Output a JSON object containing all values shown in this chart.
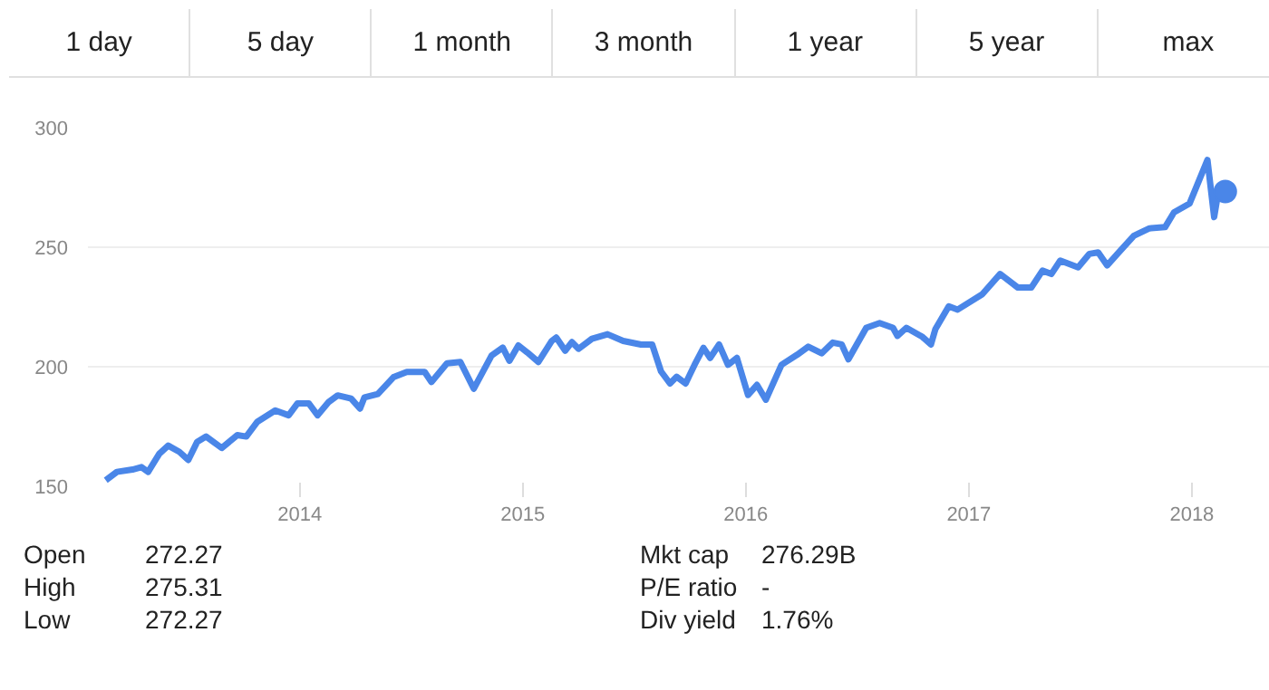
{
  "chart_data": {
    "type": "line",
    "x": [
      2013.13,
      2013.18,
      2013.25,
      2013.29,
      2013.32,
      2013.37,
      2013.41,
      2013.46,
      2013.5,
      2013.54,
      2013.58,
      2013.65,
      2013.72,
      2013.76,
      2013.81,
      2013.89,
      2013.95,
      2013.99,
      2014.04,
      2014.08,
      2014.13,
      2014.17,
      2014.23,
      2014.27,
      2014.29,
      2014.35,
      2014.42,
      2014.48,
      2014.56,
      2014.59,
      2014.66,
      2014.72,
      2014.78,
      2014.86,
      2014.91,
      2014.94,
      2014.98,
      2015.02,
      2015.07,
      2015.13,
      2015.15,
      2015.19,
      2015.22,
      2015.25,
      2015.31,
      2015.38,
      2015.45,
      2015.53,
      2015.58,
      2015.62,
      2015.66,
      2015.69,
      2015.73,
      2015.77,
      2015.81,
      2015.84,
      2015.88,
      2015.92,
      2015.96,
      2016.01,
      2016.05,
      2016.09,
      2016.16,
      2016.23,
      2016.28,
      2016.34,
      2016.39,
      2016.43,
      2016.46,
      2016.54,
      2016.6,
      2016.66,
      2016.68,
      2016.72,
      2016.79,
      2016.83,
      2016.85,
      2016.91,
      2016.95,
      2017.06,
      2017.14,
      2017.22,
      2017.28,
      2017.33,
      2017.37,
      2017.41,
      2017.49,
      2017.54,
      2017.58,
      2017.62,
      2017.68,
      2017.74,
      2017.81,
      2017.88,
      2017.92,
      2017.99,
      2018.07,
      2018.1,
      2018.12,
      2018.15
    ],
    "series": [
      {
        "color": "#4a86e8",
        "values": [
          152.5,
          156,
          157,
          158,
          156,
          163.6,
          167,
          164.4,
          161,
          168.6,
          170.8,
          166,
          171.4,
          170.8,
          177,
          181.7,
          179.7,
          184.7,
          184.7,
          179.7,
          185.3,
          188,
          186.7,
          182.5,
          187.2,
          188.6,
          195.6,
          197.8,
          197.8,
          193.6,
          201.4,
          202,
          190.8,
          204.7,
          208,
          202.5,
          208.9,
          206,
          202,
          210.8,
          212.2,
          206.7,
          210.3,
          207.5,
          211.7,
          213.6,
          210.8,
          209.3,
          209.3,
          198,
          193,
          195.8,
          193,
          200.8,
          207.9,
          203.7,
          209.3,
          200.8,
          203.7,
          188.2,
          192.4,
          186.2,
          200.8,
          205,
          208.4,
          205.6,
          210.1,
          209.3,
          203.1,
          216.3,
          218.3,
          216.3,
          212.9,
          216.3,
          212.6,
          209.3,
          215.7,
          225.3,
          223.9,
          230.3,
          238.8,
          233.1,
          233.1,
          240.2,
          238.8,
          244.4,
          241.6,
          247.2,
          247.8,
          242.4,
          248.6,
          254.8,
          257.9,
          258.4,
          264.6,
          268.3,
          286.5,
          262.6,
          273.9,
          273.3
        ]
      },
      {
        "type": "scatter",
        "marker": "circle",
        "color": "#4a86e8",
        "x": [
          2018.15
        ],
        "values": [
          273.3
        ]
      }
    ],
    "xlim": [
      2013.05,
      2018.35
    ],
    "xticks": [
      2014,
      2015,
      2016,
      2017,
      2018
    ],
    "ylim": [
      150,
      300
    ],
    "yticks": [
      150,
      200,
      250,
      300
    ],
    "grid": "y",
    "line_style": "solid",
    "annotations": [
      "1 day",
      "5 day",
      "1 month",
      "3 month",
      "1 year",
      "5 year",
      "max",
      "Open",
      "272.27",
      "High",
      "275.31",
      "Low",
      "272.27",
      "Mkt cap",
      "276.29B",
      "P/E ratio",
      "-",
      "Div yield",
      "1.76%"
    ]
  }
}
